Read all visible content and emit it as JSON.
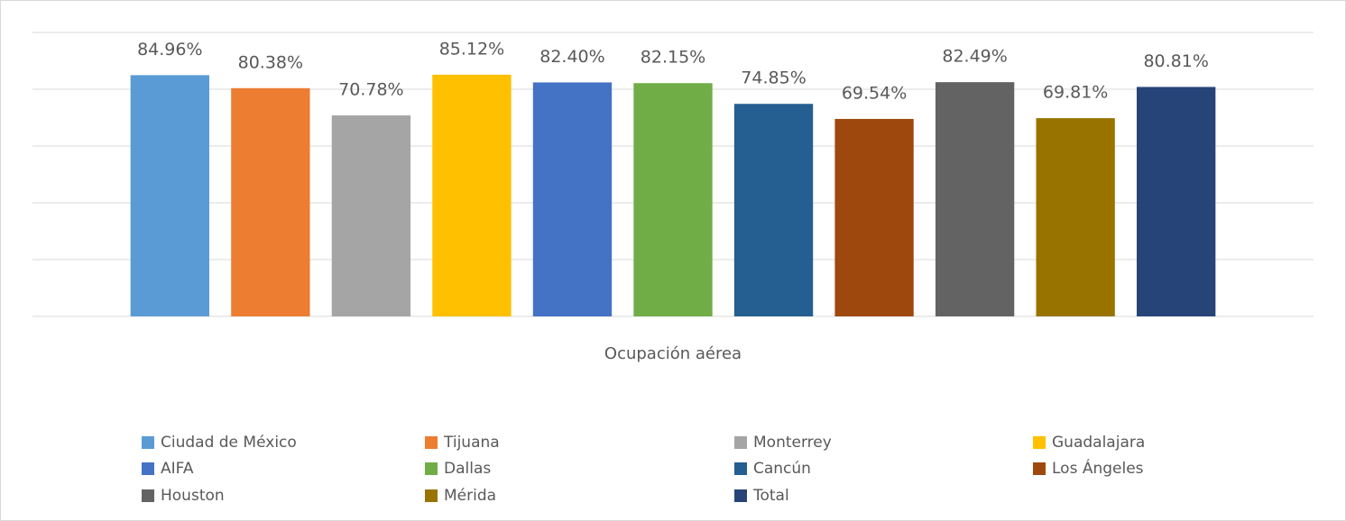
{
  "chart_data": {
    "type": "bar",
    "categories": [
      "Ocupación aérea"
    ],
    "series": [
      {
        "name": "Ciudad de México",
        "color": "#5b9bd5",
        "values": [
          84.96
        ],
        "value_labels": [
          "84.96%"
        ]
      },
      {
        "name": "Tijuana",
        "color": "#ed7d31",
        "values": [
          80.38
        ],
        "value_labels": [
          "80.38%"
        ]
      },
      {
        "name": "Monterrey",
        "color": "#a5a5a5",
        "values": [
          70.78
        ],
        "value_labels": [
          "70.78%"
        ]
      },
      {
        "name": "Guadalajara",
        "color": "#ffc000",
        "values": [
          85.12
        ],
        "value_labels": [
          "85.12%"
        ]
      },
      {
        "name": "AIFA",
        "color": "#4472c4",
        "values": [
          82.4
        ],
        "value_labels": [
          "82.40%"
        ]
      },
      {
        "name": "Dallas",
        "color": "#70ad47",
        "values": [
          82.15
        ],
        "value_labels": [
          "82.15%"
        ]
      },
      {
        "name": "Cancún",
        "color": "#255e91",
        "values": [
          74.85
        ],
        "value_labels": [
          "74.85%"
        ]
      },
      {
        "name": "Los Ángeles",
        "color": "#9e480e",
        "values": [
          69.54
        ],
        "value_labels": [
          "69.54%"
        ]
      },
      {
        "name": "Houston",
        "color": "#636363",
        "values": [
          82.49
        ],
        "value_labels": [
          "82.49%"
        ]
      },
      {
        "name": "Mérida",
        "color": "#997300",
        "values": [
          69.81
        ],
        "value_labels": [
          "69.81%"
        ]
      },
      {
        "name": "Total",
        "color": "#264478",
        "values": [
          80.81
        ],
        "value_labels": [
          "80.81%"
        ]
      }
    ],
    "ylim": [
      0,
      100
    ],
    "yticks": [
      0,
      20,
      40,
      60,
      80,
      100
    ],
    "grid": true,
    "legend": "bottom"
  }
}
